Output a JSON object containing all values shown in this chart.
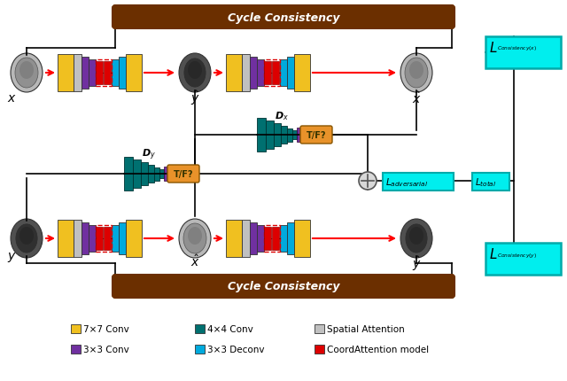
{
  "bg_color": "#ffffff",
  "brown": "#6B2F00",
  "cyan": "#00EEEE",
  "cyan_edge": "#00AAAA",
  "orange": "#E8922A",
  "gold": "#F0C020",
  "teal": "#007070",
  "purple": "#7030A0",
  "light_blue": "#00AADD",
  "red": "#DD0000",
  "gray": "#C0C0C0",
  "legend_items": [
    {
      "color": "#F0C020",
      "label": "7×7 Conv"
    },
    {
      "color": "#007070",
      "label": "4×4 Conv"
    },
    {
      "color": "#C0C0C0",
      "label": "Spatial Attention"
    },
    {
      "color": "#7030A0",
      "label": "3×3 Conv"
    },
    {
      "color": "#00AADD",
      "label": "3×3 Deconv"
    },
    {
      "color": "#DD0000",
      "label": "CoordAttention model"
    }
  ]
}
